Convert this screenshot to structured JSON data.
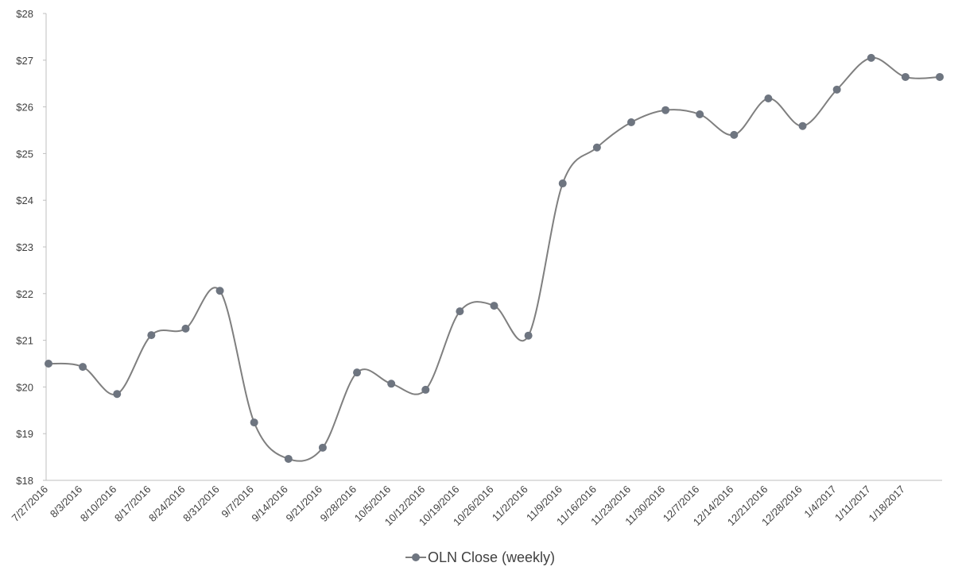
{
  "chart_data": {
    "type": "line",
    "categories": [
      "7/27/2016",
      "8/3/2016",
      "8/10/2016",
      "8/17/2016",
      "8/24/2016",
      "8/31/2016",
      "9/7/2016",
      "9/14/2016",
      "9/21/2016",
      "9/28/2016",
      "10/5/2016",
      "10/12/2016",
      "10/19/2016",
      "10/26/2016",
      "11/2/2016",
      "11/9/2016",
      "11/16/2016",
      "11/23/2016",
      "11/30/2016",
      "12/7/2016",
      "12/14/2016",
      "12/21/2016",
      "12/28/2016",
      "1/4/2017",
      "1/11/2017",
      "1/18/2017",
      null
    ],
    "series": [
      {
        "name": "OLN Close (weekly)",
        "color": "#7f7f7f",
        "marker_color": "#6e7580",
        "values": [
          20.5,
          20.43,
          19.85,
          21.11,
          21.25,
          22.06,
          19.24,
          18.46,
          18.7,
          20.31,
          20.07,
          19.94,
          21.62,
          21.74,
          21.1,
          24.36,
          25.13,
          25.67,
          25.93,
          25.84,
          25.4,
          26.18,
          25.59,
          26.37,
          27.05,
          26.64,
          26.64
        ]
      }
    ],
    "ylim": [
      18,
      28
    ],
    "yticks": [
      {
        "value": 18,
        "label": "$18"
      },
      {
        "value": 19,
        "label": "$19"
      },
      {
        "value": 20,
        "label": "$20"
      },
      {
        "value": 21,
        "label": "$21"
      },
      {
        "value": 22,
        "label": "$22"
      },
      {
        "value": 23,
        "label": "$23"
      },
      {
        "value": 24,
        "label": "$24"
      },
      {
        "value": 25,
        "label": "$25"
      },
      {
        "value": 26,
        "label": "$26"
      },
      {
        "value": 27,
        "label": "$27"
      },
      {
        "value": 28,
        "label": "$28"
      }
    ],
    "grid": false,
    "legend": "bottom"
  }
}
